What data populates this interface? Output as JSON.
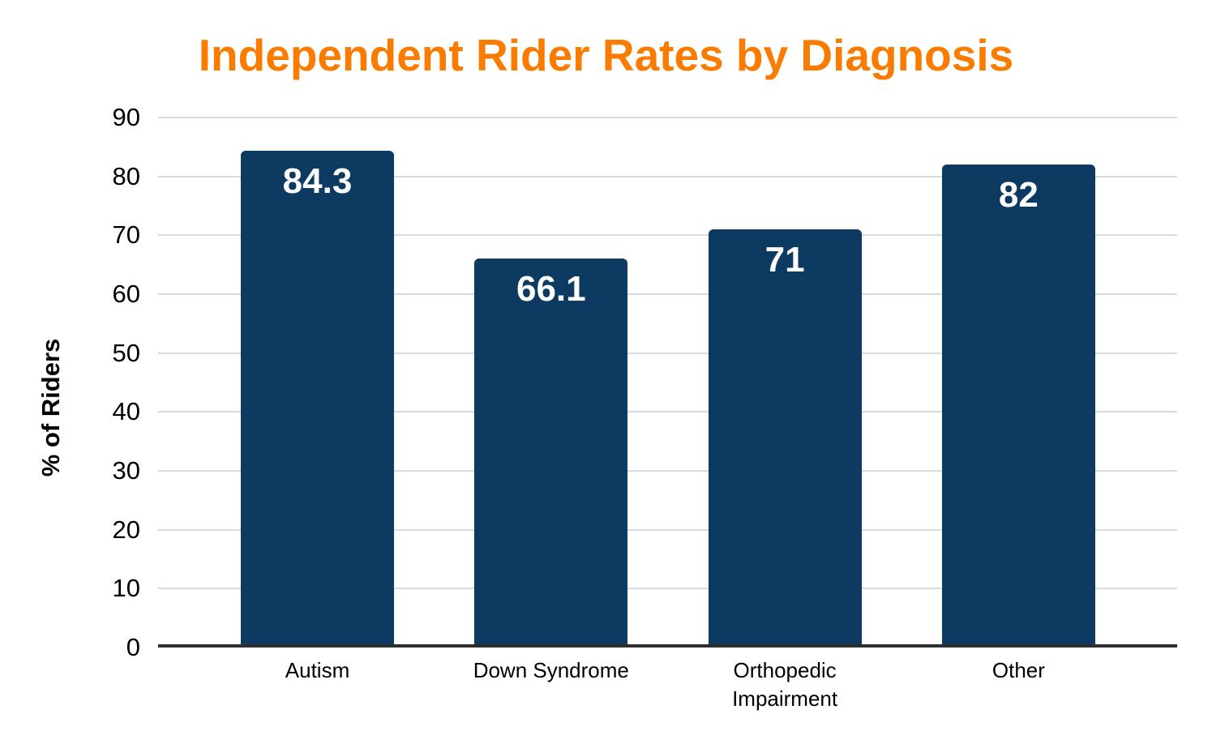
{
  "page": {
    "background": "#ffffff"
  },
  "chart_data": {
    "type": "bar",
    "title": "Independent Rider Rates by Diagnosis",
    "title_color": "#F97C00",
    "ylabel": "% of Riders",
    "xlabel": "",
    "categories": [
      "Autism",
      "Down Syndrome",
      "Orthopedic Impairment",
      "Other"
    ],
    "xtick_labels": [
      "Autism",
      "Down Syndrome",
      "Orthopedic\nImpairment",
      "Other"
    ],
    "values": [
      84.3,
      66.1,
      71,
      82
    ],
    "value_labels": [
      "84.3",
      "66.1",
      "71",
      "82"
    ],
    "ylim": [
      0,
      90
    ],
    "yticks": [
      0,
      10,
      20,
      30,
      40,
      50,
      60,
      70,
      80,
      90
    ],
    "grid": true,
    "legend": "none",
    "bar_color": "#0C3A60",
    "value_label_color": "#FFFFFF",
    "gridline_color": "#D9D9D9",
    "axis_line_color": "#2E2E2E",
    "tick_label_color": "#000000",
    "category_label_color": "#000000"
  }
}
